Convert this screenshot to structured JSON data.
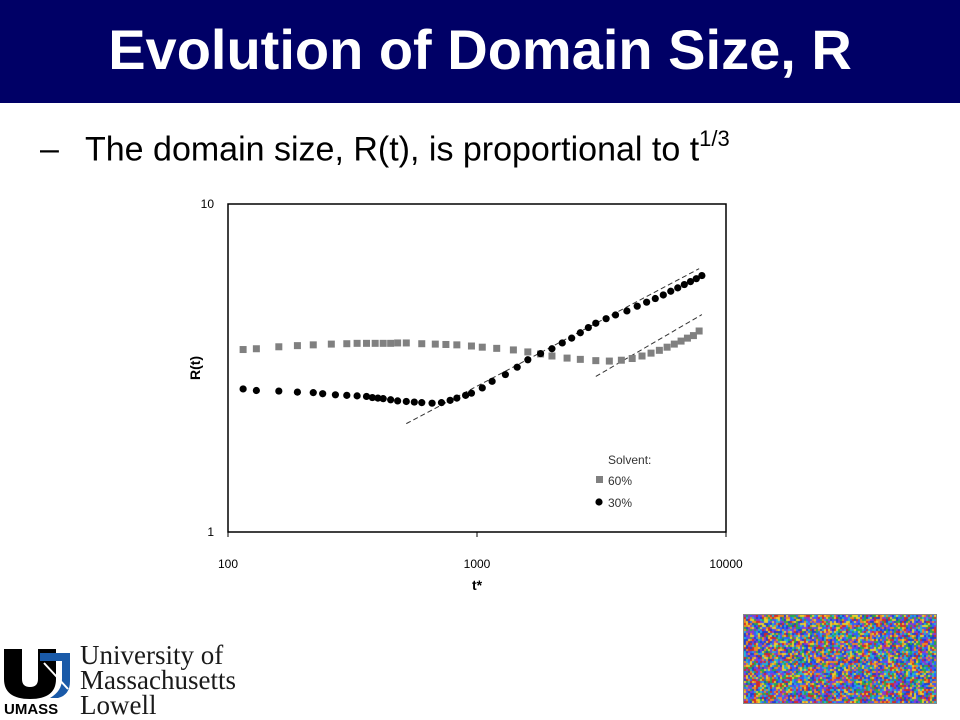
{
  "slide": {
    "title": "Evolution of Domain Size, R",
    "bullet_dash": "–",
    "bullet_text": "The domain size, R(t), is proportional to t",
    "bullet_superscript": "1/3"
  },
  "logo": {
    "line1": "University of",
    "line2": "Massachusetts",
    "line3": "Lowell",
    "umass": "UMASS"
  },
  "chart_data": {
    "type": "scatter",
    "xlabel": "t*",
    "ylabel": "R(t)",
    "xscale": "log",
    "yscale": "log",
    "xlim": [
      100,
      10000
    ],
    "ylim": [
      1,
      10
    ],
    "xticks": [
      "100",
      "1000",
      "10000"
    ],
    "yticks": [
      "1",
      "10"
    ],
    "legend_title": "Solvent:",
    "legend_position": "bottom-right",
    "series": [
      {
        "name": "60%",
        "marker": "square",
        "color": "#808080",
        "x": [
          115,
          130,
          160,
          190,
          220,
          260,
          300,
          330,
          360,
          390,
          420,
          450,
          480,
          520,
          600,
          680,
          750,
          830,
          950,
          1050,
          1200,
          1400,
          1600,
          1800,
          2000,
          2300,
          2600,
          3000,
          3400,
          3800,
          4200,
          4600,
          5000,
          5400,
          5800,
          6200,
          6600,
          7000,
          7400,
          7800
        ],
        "y": [
          3.6,
          3.62,
          3.67,
          3.7,
          3.72,
          3.74,
          3.75,
          3.76,
          3.76,
          3.76,
          3.76,
          3.76,
          3.77,
          3.77,
          3.75,
          3.74,
          3.73,
          3.72,
          3.69,
          3.66,
          3.63,
          3.59,
          3.54,
          3.49,
          3.44,
          3.39,
          3.36,
          3.33,
          3.32,
          3.34,
          3.38,
          3.44,
          3.51,
          3.58,
          3.66,
          3.74,
          3.82,
          3.9,
          3.97,
          4.1
        ]
      },
      {
        "name": "30%",
        "marker": "circle",
        "color": "#000000",
        "x": [
          115,
          130,
          160,
          190,
          220,
          240,
          270,
          300,
          330,
          360,
          380,
          400,
          420,
          450,
          480,
          520,
          560,
          600,
          660,
          720,
          780,
          830,
          900,
          950,
          1050,
          1150,
          1300,
          1450,
          1600,
          1800,
          2000,
          2200,
          2400,
          2600,
          2800,
          3000,
          3300,
          3600,
          4000,
          4400,
          4800,
          5200,
          5600,
          6000,
          6400,
          6800,
          7200,
          7600,
          8000
        ],
        "y": [
          2.73,
          2.7,
          2.69,
          2.67,
          2.66,
          2.64,
          2.62,
          2.61,
          2.6,
          2.59,
          2.57,
          2.56,
          2.55,
          2.53,
          2.51,
          2.5,
          2.49,
          2.48,
          2.47,
          2.48,
          2.52,
          2.56,
          2.61,
          2.65,
          2.75,
          2.88,
          3.02,
          3.18,
          3.35,
          3.5,
          3.62,
          3.77,
          3.9,
          4.05,
          4.2,
          4.33,
          4.47,
          4.59,
          4.72,
          4.88,
          5.02,
          5.15,
          5.28,
          5.42,
          5.55,
          5.68,
          5.8,
          5.92,
          6.05
        ]
      }
    ],
    "fit_lines": [
      {
        "x": [
          520,
          7800
        ],
        "y": [
          2.14,
          6.35
        ]
      },
      {
        "x": [
          3000,
          8000
        ],
        "y": [
          2.98,
          4.6
        ]
      }
    ]
  }
}
